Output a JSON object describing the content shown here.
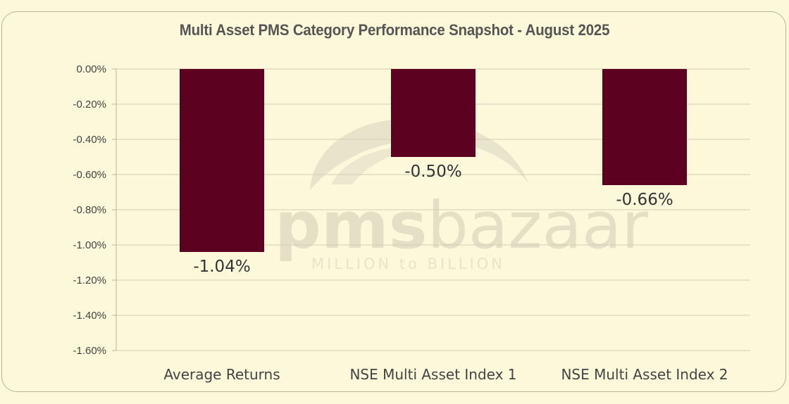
{
  "chart_data": {
    "type": "bar",
    "title": "Multi Asset PMS Category Performance Snapshot - August 2025",
    "categories": [
      "Average Returns",
      "NSE Multi Asset Index 1",
      "NSE Multi Asset Index 2"
    ],
    "values": [
      -1.04,
      -0.5,
      -0.66
    ],
    "data_labels": [
      "-1.04%",
      "-0.50%",
      "-0.66%"
    ],
    "yticks": [
      0,
      -0.2,
      -0.4,
      -0.6,
      -0.8,
      -1.0,
      -1.2,
      -1.4,
      -1.6
    ],
    "ytick_labels": [
      "0.00%",
      "-0.20%",
      "-0.40%",
      "-0.60%",
      "-0.80%",
      "-1.00%",
      "-1.20%",
      "-1.40%",
      "-1.60%"
    ],
    "ylim": [
      -1.6,
      0
    ],
    "grid": true,
    "bar_color": "#5c0220",
    "xlabel": "",
    "ylabel": ""
  },
  "watermark": {
    "brand_prefix": "pms",
    "brand_suffix": "bazaar",
    "tagline": "MILLION to BILLION"
  }
}
